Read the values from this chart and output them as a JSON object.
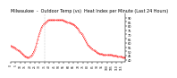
{
  "title": "Milwaukee  -  Outdoor Temp (vs)  Heat Index per Minute (Last 24 Hours)",
  "title_fontsize": 3.5,
  "line_color": "#ff0000",
  "background_color": "#ffffff",
  "ylim": [
    38,
    95
  ],
  "yticks": [
    40,
    45,
    50,
    55,
    60,
    65,
    70,
    75,
    80,
    85,
    90
  ],
  "vline_x": 35,
  "x_points": [
    0,
    1,
    2,
    3,
    4,
    5,
    6,
    7,
    8,
    9,
    10,
    11,
    12,
    13,
    14,
    15,
    16,
    17,
    18,
    19,
    20,
    21,
    22,
    23,
    24,
    25,
    26,
    27,
    28,
    29,
    30,
    31,
    32,
    33,
    34,
    35,
    36,
    37,
    38,
    39,
    40,
    41,
    42,
    43,
    44,
    45,
    46,
    47,
    48,
    49,
    50,
    51,
    52,
    53,
    54,
    55,
    56,
    57,
    58,
    59,
    60,
    61,
    62,
    63,
    64,
    65,
    66,
    67,
    68,
    69,
    70,
    71,
    72,
    73,
    74,
    75,
    76,
    77,
    78,
    79,
    80,
    81,
    82,
    83,
    84,
    85,
    86,
    87,
    88,
    89,
    90,
    91,
    92,
    93,
    94,
    95,
    96,
    97,
    98,
    99,
    100,
    101,
    102,
    103,
    104,
    105,
    106,
    107,
    108,
    109,
    110,
    111,
    112,
    113,
    114,
    115,
    116,
    117,
    118,
    119
  ],
  "y_points": [
    57,
    56,
    56,
    55,
    55,
    54,
    53,
    52,
    51,
    50,
    49,
    48,
    47,
    46,
    45,
    44,
    44,
    43,
    43,
    43,
    44,
    45,
    46,
    48,
    50,
    53,
    56,
    60,
    64,
    68,
    72,
    75,
    78,
    80,
    82,
    83,
    84,
    85,
    86,
    87,
    87,
    87,
    87,
    87,
    87,
    87,
    87,
    87,
    87,
    87,
    87,
    87,
    87,
    87,
    87,
    86,
    86,
    85,
    85,
    84,
    84,
    84,
    83,
    83,
    82,
    82,
    81,
    80,
    79,
    78,
    77,
    75,
    73,
    72,
    70,
    68,
    66,
    64,
    62,
    60,
    58,
    57,
    56,
    55,
    54,
    53,
    52,
    51,
    50,
    49,
    48,
    48,
    47,
    47,
    47,
    47,
    46,
    46,
    46,
    46,
    46,
    46,
    46,
    46,
    46,
    46,
    45,
    45,
    45,
    45,
    45,
    44,
    44,
    44,
    44,
    44,
    43,
    43,
    43,
    43
  ],
  "num_xticks": 25,
  "xtick_every": 5,
  "tick_fontsize": 2.5,
  "linewidth": 0.55,
  "dot_size": 0.4
}
